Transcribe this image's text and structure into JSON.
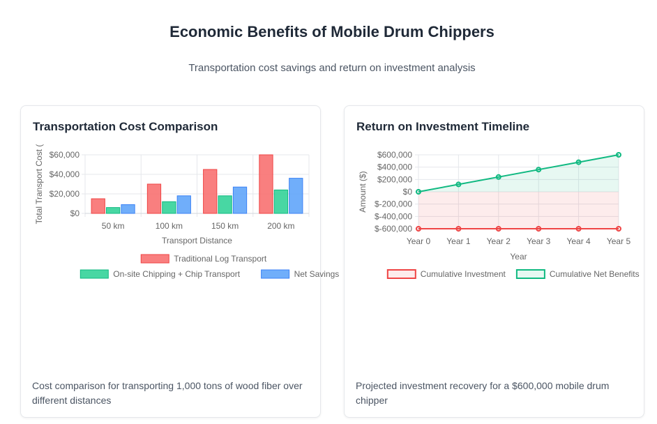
{
  "page": {
    "title": "Economic Benefits of Mobile Drum Chippers",
    "subtitle": "Transportation cost savings and return on investment analysis"
  },
  "cards": [
    {
      "title": "Transportation Cost Comparison",
      "caption": "Cost comparison for transporting 1,000 tons of wood fiber over different distances"
    },
    {
      "title": "Return on Investment Timeline",
      "caption": "Projected investment recovery for a $600,000 mobile drum chipper"
    }
  ],
  "chart_data": [
    {
      "type": "bar",
      "title": "Transportation Cost Comparison",
      "categories": [
        "50 km",
        "100 km",
        "150 km",
        "200 km"
      ],
      "xlabel": "Transport Distance",
      "ylabel": "Total Transport Cost (",
      "ylim": [
        0,
        60000
      ],
      "yticks": [
        0,
        20000,
        40000,
        60000
      ],
      "ytick_labels": [
        "$0",
        "$20,000",
        "$40,000",
        "$60,000"
      ],
      "grid": true,
      "legend_position": "bottom",
      "series": [
        {
          "name": "Traditional Log Transport",
          "values": [
            15000,
            30000,
            45000,
            60000
          ],
          "color": "#f87171",
          "border": "#ef4444"
        },
        {
          "name": "On-site Chipping + Chip Transport",
          "values": [
            6000,
            12000,
            18000,
            24000
          ],
          "color": "#34d399",
          "border": "#10b981"
        },
        {
          "name": "Net Savings",
          "values": [
            9000,
            18000,
            27000,
            36000
          ],
          "color": "#60a5fa",
          "border": "#3b82f6"
        }
      ]
    },
    {
      "type": "line",
      "title": "Return on Investment Timeline",
      "categories": [
        "Year 0",
        "Year 1",
        "Year 2",
        "Year 3",
        "Year 4",
        "Year 5"
      ],
      "xlabel": "Year",
      "ylabel": "Amount ($)",
      "ylim": [
        -600000,
        600000
      ],
      "yticks": [
        600000,
        400000,
        200000,
        0,
        -200000,
        -400000,
        -600000
      ],
      "ytick_labels": [
        "$600,000",
        "$400,000",
        "$200,000",
        "$0",
        "$-200,000",
        "$-400,000",
        "$-600,000"
      ],
      "grid": true,
      "legend_position": "bottom",
      "series": [
        {
          "name": "Cumulative Investment",
          "values": [
            -600000,
            -600000,
            -600000,
            -600000,
            -600000,
            -600000
          ],
          "color": "#ef4444",
          "fill": "rgba(239,68,68,0.1)",
          "fill_to": "zero"
        },
        {
          "name": "Cumulative Net Benefits",
          "values": [
            0,
            120000,
            240000,
            360000,
            480000,
            600000
          ],
          "color": "#10b981",
          "fill": "rgba(16,185,129,0.1)",
          "fill_to": "zero"
        }
      ]
    }
  ]
}
